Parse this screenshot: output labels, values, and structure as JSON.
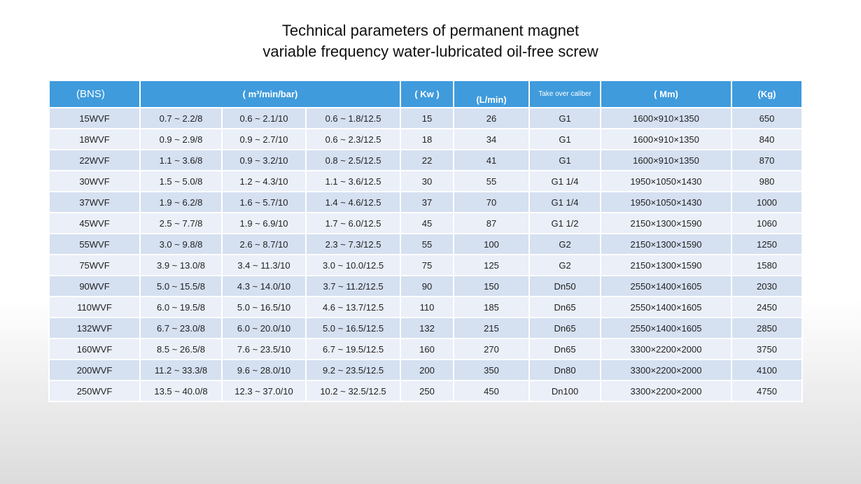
{
  "title": {
    "line1": "Technical parameters of permanent magnet",
    "line2": "variable frequency water-lubricated oil-free screw"
  },
  "table": {
    "headers": {
      "model": "(BNS)",
      "flow_pressure": "( m³/min/bar)",
      "power": "( Kw )",
      "water": "(L/min)",
      "caliber": "Take over caliber",
      "dimensions": "( Mm)",
      "weight": "(Kg)"
    },
    "rows": [
      [
        "15WVF",
        "0.7 ~ 2.2/8",
        "0.6 ~ 2.1/10",
        "0.6 ~ 1.8/12.5",
        "15",
        "26",
        "G1",
        "1600×910×1350",
        "650"
      ],
      [
        "18WVF",
        "0.9 ~ 2.9/8",
        "0.9 ~ 2.7/10",
        "0.6 ~ 2.3/12.5",
        "18",
        "34",
        "G1",
        "1600×910×1350",
        "840"
      ],
      [
        "22WVF",
        "1.1 ~ 3.6/8",
        "0.9 ~ 3.2/10",
        "0.8 ~ 2.5/12.5",
        "22",
        "41",
        "G1",
        "1600×910×1350",
        "870"
      ],
      [
        "30WVF",
        "1.5 ~ 5.0/8",
        "1.2 ~ 4.3/10",
        "1.1 ~ 3.6/12.5",
        "30",
        "55",
        "G1 1/4",
        "1950×1050×1430",
        "980"
      ],
      [
        "37WVF",
        "1.9 ~ 6.2/8",
        "1.6 ~ 5.7/10",
        "1.4 ~ 4.6/12.5",
        "37",
        "70",
        "G1 1/4",
        "1950×1050×1430",
        "1000"
      ],
      [
        "45WVF",
        "2.5 ~ 7.7/8",
        "1.9 ~ 6.9/10",
        "1.7 ~ 6.0/12.5",
        "45",
        "87",
        "G1 1/2",
        "2150×1300×1590",
        "1060"
      ],
      [
        "55WVF",
        "3.0 ~ 9.8/8",
        "2.6 ~ 8.7/10",
        "2.3 ~ 7.3/12.5",
        "55",
        "100",
        "G2",
        "2150×1300×1590",
        "1250"
      ],
      [
        "75WVF",
        "3.9 ~ 13.0/8",
        "3.4 ~ 11.3/10",
        "3.0 ~ 10.0/12.5",
        "75",
        "125",
        "G2",
        "2150×1300×1590",
        "1580"
      ],
      [
        "90WVF",
        "5.0 ~ 15.5/8",
        "4.3 ~ 14.0/10",
        "3.7 ~ 11.2/12.5",
        "90",
        "150",
        "Dn50",
        "2550×1400×1605",
        "2030"
      ],
      [
        "110WVF",
        "6.0 ~ 19.5/8",
        "5.0 ~ 16.5/10",
        "4.6 ~ 13.7/12.5",
        "110",
        "185",
        "Dn65",
        "2550×1400×1605",
        "2450"
      ],
      [
        "132WVF",
        "6.7 ~ 23.0/8",
        "6.0 ~ 20.0/10",
        "5.0 ~ 16.5/12.5",
        "132",
        "215",
        "Dn65",
        "2550×1400×1605",
        "2850"
      ],
      [
        "160WVF",
        "8.5 ~ 26.5/8",
        "7.6 ~ 23.5/10",
        "6.7 ~ 19.5/12.5",
        "160",
        "270",
        "Dn65",
        "3300×2200×2000",
        "3750"
      ],
      [
        "200WVF",
        "11.2 ~ 33.3/8",
        "9.6 ~ 28.0/10",
        "9.2 ~ 23.5/12.5",
        "200",
        "350",
        "Dn80",
        "3300×2200×2000",
        "4100"
      ],
      [
        "250WVF",
        "13.5 ~ 40.0/8",
        "12.3 ~ 37.0/10",
        "10.2 ~ 32.5/12.5",
        "250",
        "450",
        "Dn100",
        "3300×2200×2000",
        "4750"
      ]
    ]
  }
}
